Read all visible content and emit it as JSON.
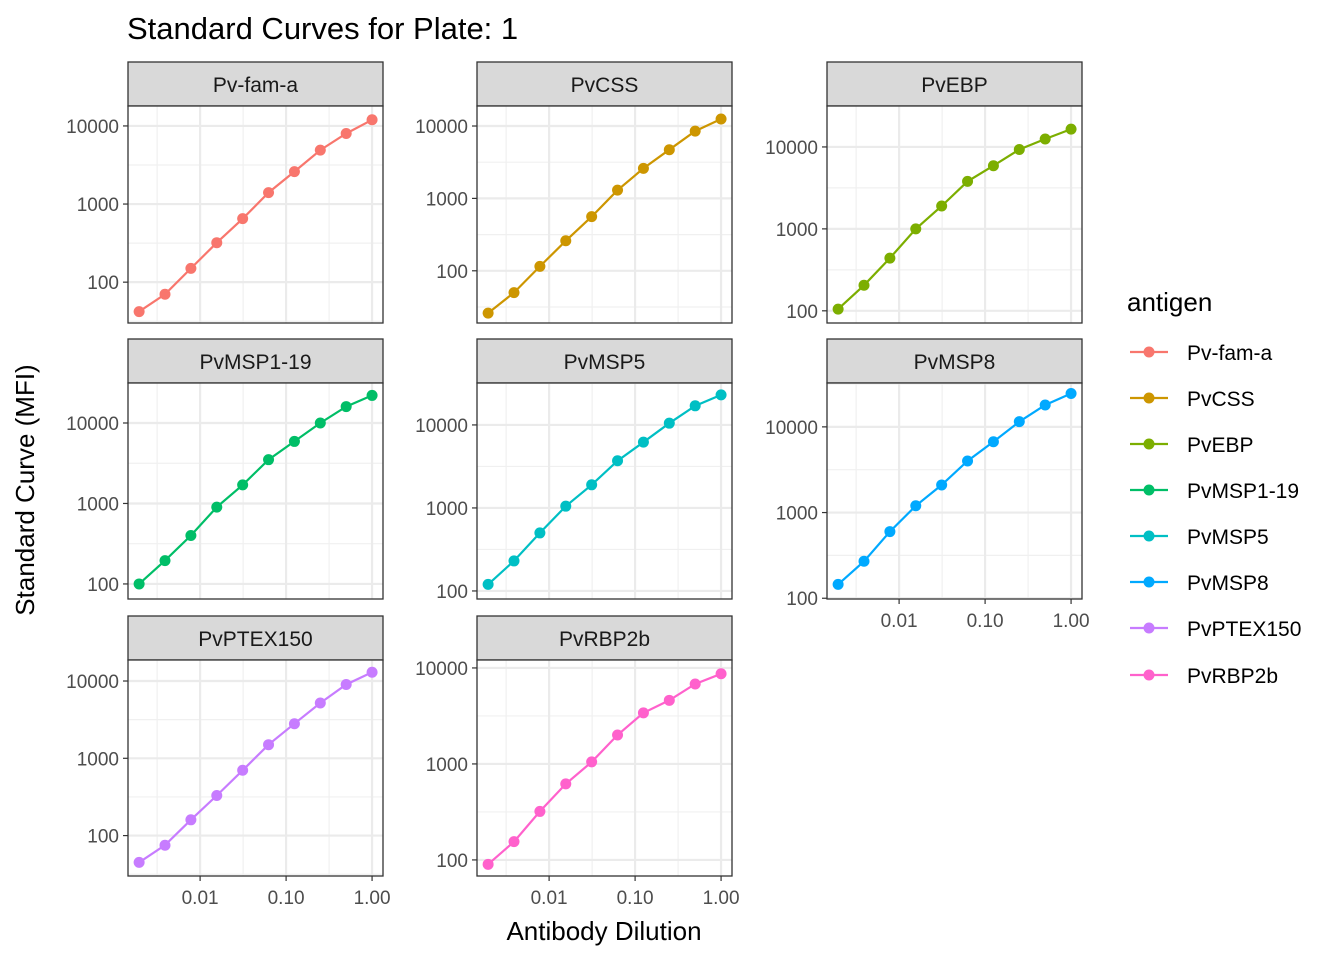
{
  "chart_data": {
    "type": "line",
    "title": "Standard Curves for Plate: 1",
    "xlabel": "Antibody Dilution",
    "ylabel": "Standard Curve (MFI)",
    "x_scale": "log10",
    "y_scale": "log10",
    "x": [
      0.001953,
      0.003906,
      0.007813,
      0.015625,
      0.03125,
      0.0625,
      0.125,
      0.25,
      0.5,
      1
    ],
    "xlim": [
      0.00145,
      1.34
    ],
    "xticks": [
      {
        "value": 0.01,
        "label": "0.01"
      },
      {
        "value": 0.1,
        "label": "0.10"
      },
      {
        "value": 1,
        "label": "1.00"
      }
    ],
    "yticks": [
      {
        "value": 100,
        "label": "100"
      },
      {
        "value": 1000,
        "label": "1000"
      },
      {
        "value": 10000,
        "label": "10000"
      }
    ],
    "grid": true,
    "legend_title": "antigen",
    "legend_position": "right",
    "series": [
      {
        "name": "Pv-fam-a",
        "color": "#F8766D",
        "ylim": [
          30,
          18000
        ],
        "values": [
          42,
          70,
          150,
          320,
          650,
          1400,
          2600,
          4900,
          8000,
          12000
        ]
      },
      {
        "name": "PvCSS",
        "color": "#CD9600",
        "ylim": [
          19,
          18900
        ],
        "values": [
          26,
          50,
          115,
          260,
          560,
          1300,
          2600,
          4700,
          8500,
          12500
        ]
      },
      {
        "name": "PvEBP",
        "color": "#7CAE00",
        "ylim": [
          71,
          31600
        ],
        "values": [
          105,
          205,
          440,
          1000,
          1900,
          3800,
          5900,
          9300,
          12500,
          16500
        ]
      },
      {
        "name": "PvMSP1-19",
        "color": "#00BE67",
        "ylim": [
          65,
          31400
        ],
        "values": [
          100,
          195,
          400,
          900,
          1700,
          3500,
          5900,
          10000,
          16000,
          22000
        ]
      },
      {
        "name": "PvMSP5",
        "color": "#00BFC4",
        "ylim": [
          80,
          32000
        ],
        "values": [
          120,
          230,
          500,
          1050,
          1900,
          3700,
          6200,
          10500,
          17000,
          23000
        ]
      },
      {
        "name": "PvMSP8",
        "color": "#00A9FF",
        "ylim": [
          98,
          32500
        ],
        "values": [
          145,
          270,
          600,
          1200,
          2100,
          4000,
          6700,
          11500,
          18000,
          24500
        ]
      },
      {
        "name": "PvPTEX150",
        "color": "#C77CFF",
        "ylim": [
          30,
          18700
        ],
        "values": [
          45,
          75,
          160,
          330,
          700,
          1500,
          2800,
          5200,
          9000,
          13000
        ]
      },
      {
        "name": "PvRBP2b",
        "color": "#FF61CC",
        "ylim": [
          68,
          12100
        ],
        "values": [
          90,
          155,
          320,
          620,
          1050,
          2000,
          3400,
          4600,
          6800,
          8700
        ]
      }
    ]
  }
}
